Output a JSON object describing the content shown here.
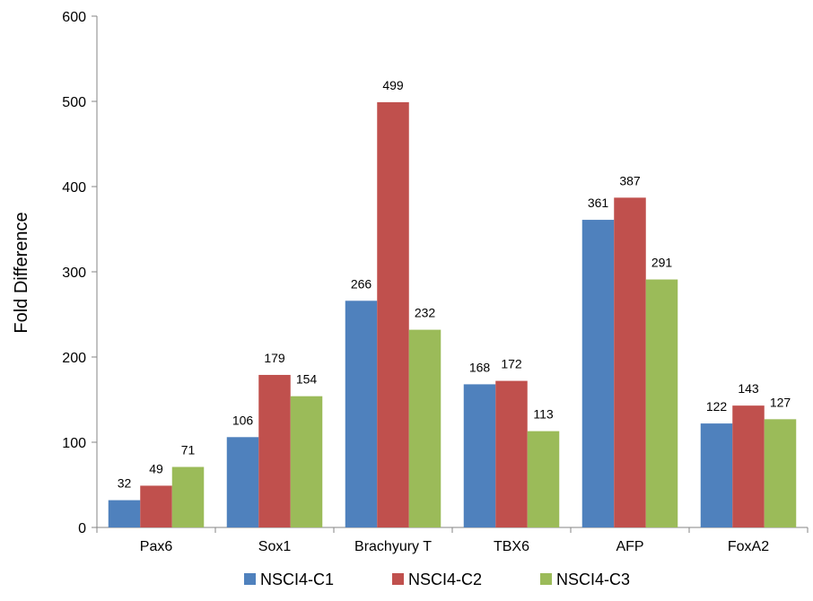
{
  "chart_data": {
    "type": "bar",
    "title": "",
    "xlabel": "",
    "ylabel": "Fold Difference",
    "ylim": [
      0,
      600
    ],
    "yticks": [
      0,
      100,
      200,
      300,
      400,
      500,
      600
    ],
    "grid": false,
    "legend_position": "bottom",
    "categories": [
      "Pax6",
      "Sox1",
      "Brachyury T",
      "TBX6",
      "AFP",
      "FoxA2"
    ],
    "series": [
      {
        "name": "NSCI4-C1",
        "color": "#4F81BD",
        "values": [
          32,
          106,
          266,
          168,
          361,
          122
        ]
      },
      {
        "name": "NSCI4-C2",
        "color": "#C0504D",
        "values": [
          49,
          179,
          499,
          172,
          387,
          143
        ]
      },
      {
        "name": "NSCI4-C3",
        "color": "#9BBB59",
        "values": [
          71,
          154,
          232,
          113,
          291,
          127
        ]
      }
    ]
  }
}
